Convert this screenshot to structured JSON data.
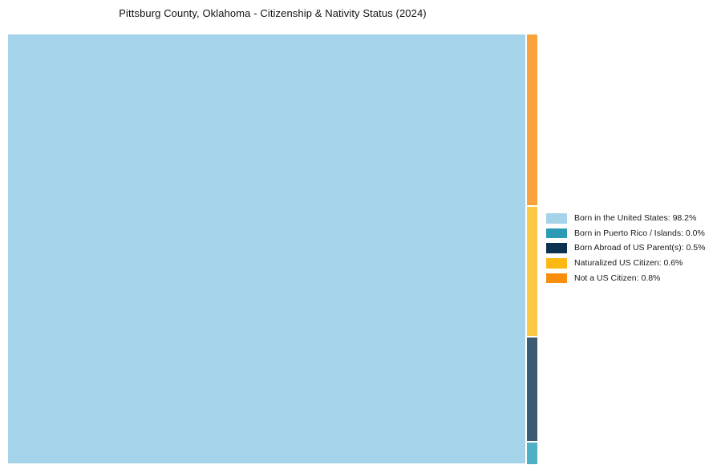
{
  "title": "Pittsburg County, Oklahoma - Citizenship & Nativity Status (2024)",
  "chart_data": {
    "type": "treemap",
    "title": "Pittsburg County, Oklahoma - Citizenship & Nativity Status (2024)",
    "categories": [
      "Born in the United States",
      "Born in Puerto Rico / Islands",
      "Born Abroad of US Parent(s)",
      "Naturalized US Citizen",
      "Not a US Citizen"
    ],
    "values": [
      98.2,
      0.0,
      0.5,
      0.6,
      0.8
    ],
    "unit": "%",
    "legend_position": "right",
    "layout": "single large rectangle for largest category; remaining categories stacked top-to-bottom in a thin right strip: Not a US Citizen, Naturalized US Citizen, Born Abroad of US Parent(s), Born in Puerto Rico / Islands"
  },
  "colors": {
    "main_rect": "#a5d3e9",
    "strip": {
      "not_citizen": "#faa23c",
      "naturalized": "#fdc845",
      "born_abroad": "#3c5b73",
      "born_pr": "#4fb0c5"
    },
    "legend_swatches": {
      "born_us": "#a5d3e9",
      "born_pr": "#2b9ab3",
      "born_abroad": "#0d3150",
      "naturalized": "#fdb813",
      "not_citizen": "#f98d0c"
    }
  },
  "legend": {
    "items": [
      {
        "label": "Born in the United States: 98.2%"
      },
      {
        "label": "Born in Puerto Rico / Islands: 0.0%"
      },
      {
        "label": "Born Abroad of US Parent(s): 0.5%"
      },
      {
        "label": "Naturalized US Citizen: 0.6%"
      },
      {
        "label": "Not a US Citizen: 0.8%"
      }
    ]
  }
}
